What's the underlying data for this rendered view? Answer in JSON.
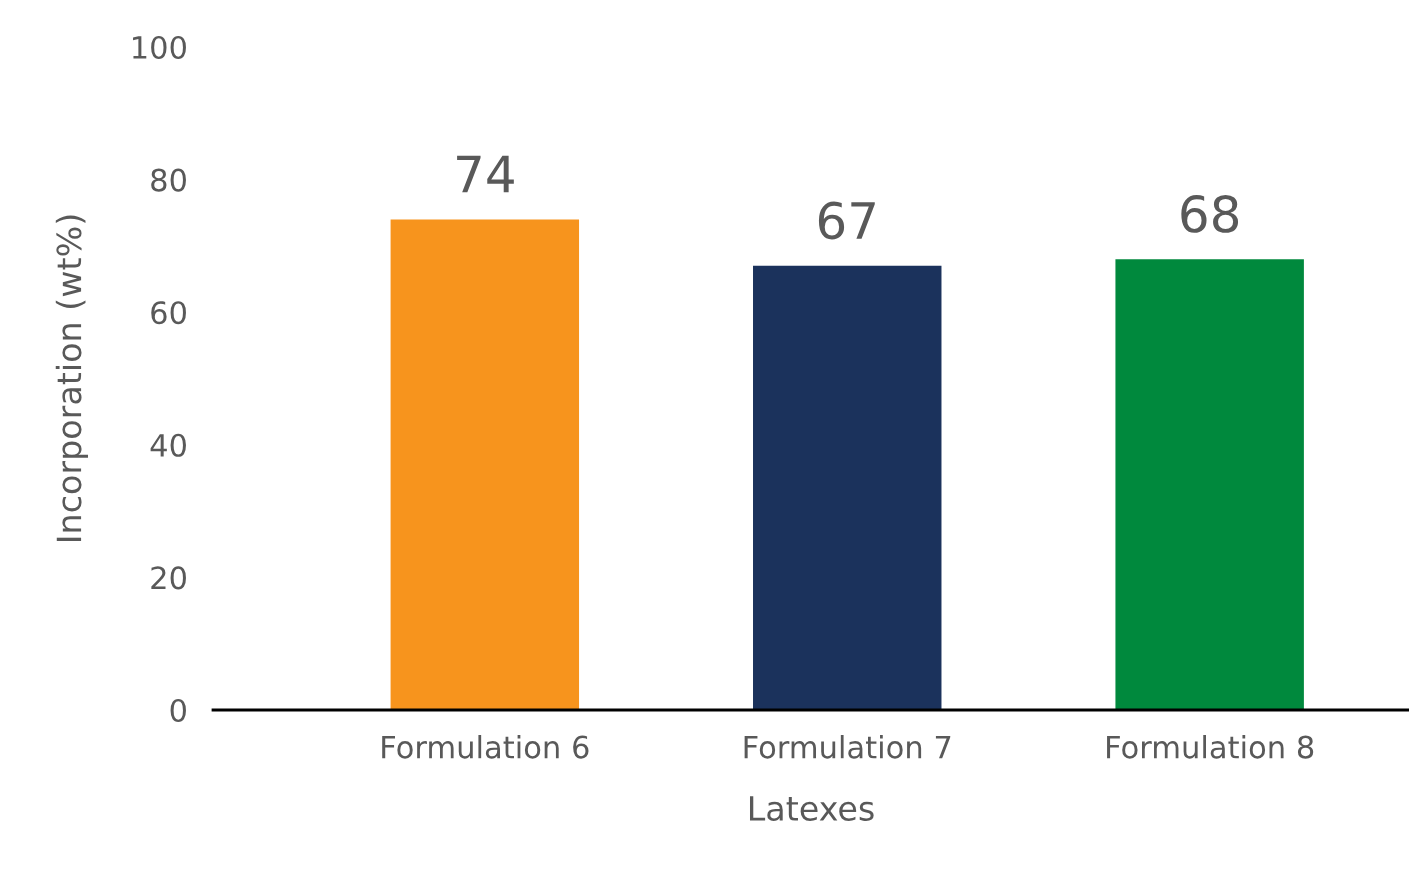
{
  "chart_data": {
    "type": "bar",
    "xlabel": "Latexes",
    "ylabel": "Incorporation (wt%)",
    "categories": [
      "Formulation 6",
      "Formulation 7",
      "Formulation 8"
    ],
    "values": [
      74,
      67,
      68
    ],
    "colors": [
      "#f7941d",
      "#1b325c",
      "#00893d"
    ],
    "ylim": [
      0,
      100
    ],
    "yticks": [
      0,
      20,
      40,
      60,
      80,
      100
    ],
    "grid": false,
    "data_labels": true
  }
}
